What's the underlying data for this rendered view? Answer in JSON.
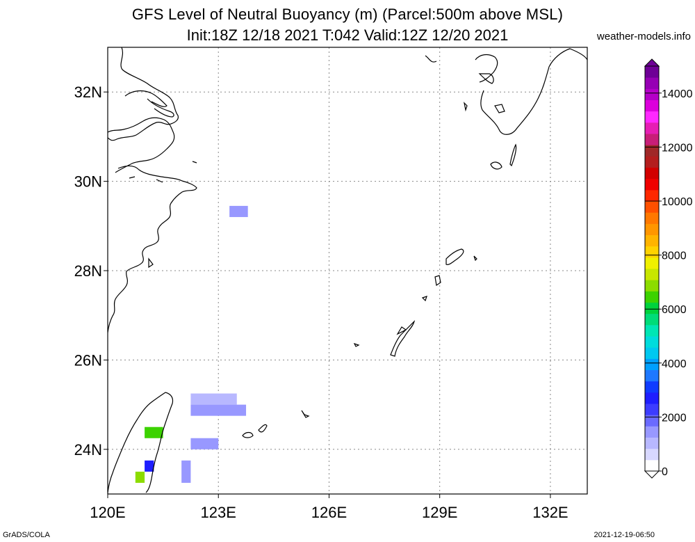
{
  "header": {
    "title_line1": "GFS Level of Neutral Buoyancy (m) (Parcel:500m above MSL)",
    "title_line2": "Init:18Z 12/18 2021 T:042 Valid:12Z 12/20 2021",
    "site": "weather-models.info"
  },
  "footer": {
    "left": "GrADS/COLA",
    "right": "2021-12-19-06:50"
  },
  "map": {
    "lon_range": [
      120,
      133
    ],
    "lat_range": [
      23,
      33
    ],
    "lat_ticks": [
      {
        "value": 32,
        "label": "32N"
      },
      {
        "value": 30,
        "label": "30N"
      },
      {
        "value": 28,
        "label": "28N"
      },
      {
        "value": 26,
        "label": "26N"
      },
      {
        "value": 24,
        "label": "24N"
      }
    ],
    "lon_ticks": [
      {
        "value": 120,
        "label": "120E"
      },
      {
        "value": 123,
        "label": "123E"
      },
      {
        "value": 126,
        "label": "126E"
      },
      {
        "value": 129,
        "label": "129E"
      },
      {
        "value": 132,
        "label": "132E"
      }
    ],
    "grid": "dotted"
  },
  "colorbar": {
    "min": 0,
    "max": 15000,
    "labels": [
      "0",
      "2000",
      "4000",
      "6000",
      "8000",
      "10000",
      "12000",
      "14000"
    ],
    "colors": [
      "#ffffff",
      "#d8d8ff",
      "#b8b8ff",
      "#9898ff",
      "#6a6aff",
      "#3c3cff",
      "#1e1eff",
      "#0f3cff",
      "#1e78ff",
      "#00a0ff",
      "#00c8f0",
      "#00dcdc",
      "#00e6b4",
      "#00dc78",
      "#00d23c",
      "#3cd200",
      "#8cdc00",
      "#c8e600",
      "#f0f000",
      "#ffd200",
      "#ffb400",
      "#ff9600",
      "#ff7800",
      "#ff5000",
      "#ff2800",
      "#f00000",
      "#d20000",
      "#b41e1e",
      "#a02828",
      "#c81e78",
      "#e61eb4",
      "#ff28ff",
      "#dc00dc",
      "#b400c8",
      "#9600b4",
      "#6e0096"
    ]
  },
  "field_cells": [
    {
      "lon": 123.3,
      "lat": 29.2,
      "dlon": 0.5,
      "dlat": 0.25,
      "value": 1500
    },
    {
      "lon": 122.25,
      "lat": 25.0,
      "dlon": 1.25,
      "dlat": 0.25,
      "value": 1200
    },
    {
      "lon": 122.25,
      "lat": 24.75,
      "dlon": 1.5,
      "dlat": 0.25,
      "value": 1400
    },
    {
      "lon": 122.25,
      "lat": 24.0,
      "dlon": 0.75,
      "dlat": 0.25,
      "value": 1300
    },
    {
      "lon": 122.0,
      "lat": 23.25,
      "dlon": 0.25,
      "dlat": 0.5,
      "value": 1500
    },
    {
      "lon": 121.0,
      "lat": 24.25,
      "dlon": 0.5,
      "dlat": 0.25,
      "value": 6500
    },
    {
      "lon": 121.0,
      "lat": 23.5,
      "dlon": 0.25,
      "dlat": 0.25,
      "value": 2500
    },
    {
      "lon": 120.75,
      "lat": 23.25,
      "dlon": 0.25,
      "dlat": 0.25,
      "value": 7000
    }
  ]
}
